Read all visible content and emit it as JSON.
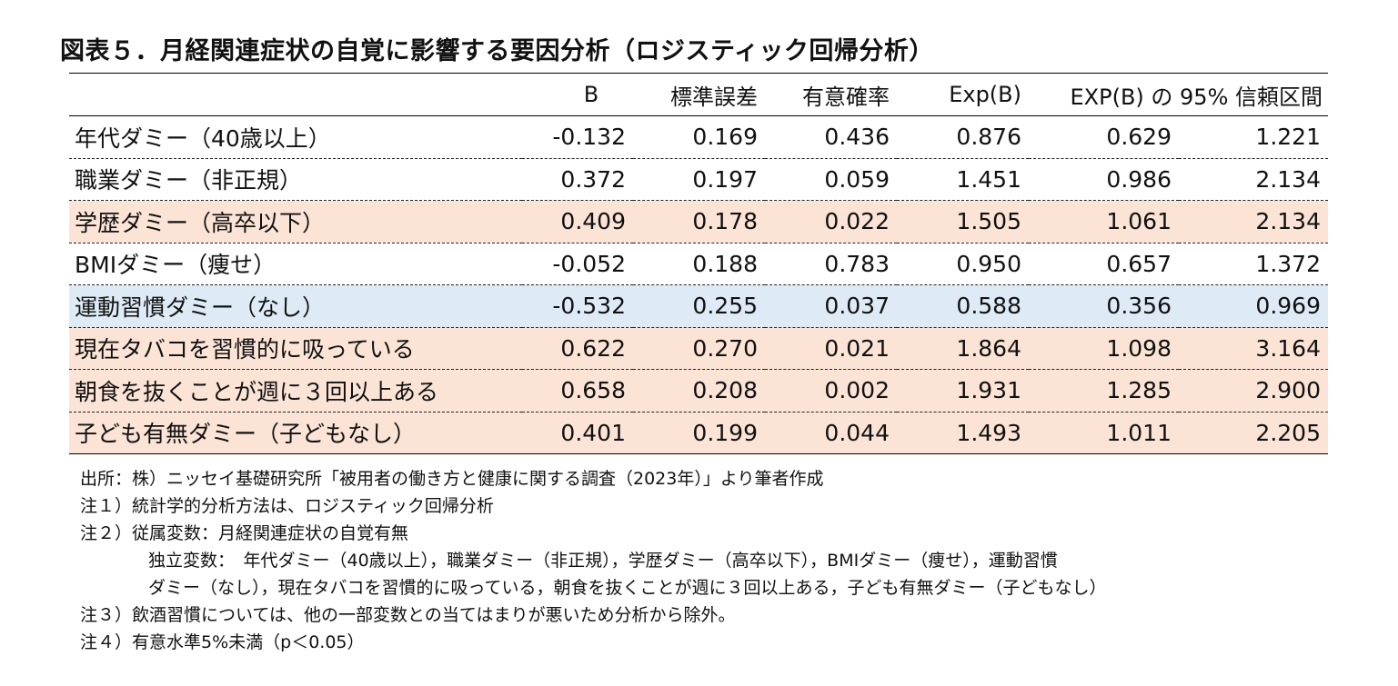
{
  "title": "図表５．月経関連症状の自覚に影響する要因分析（ロジスティック回帰分析）",
  "table": {
    "headers": [
      "",
      "B",
      "標準誤差",
      "有意確率",
      "Exp(B)",
      "EXP(B) の 95% 信頼区間"
    ],
    "rows": [
      {
        "label": "年代ダミー（40歳以上）",
        "b": "-0.132",
        "se": "0.169",
        "p": "0.436",
        "exp": "0.876",
        "ci_low": "0.629",
        "ci_high": "1.221",
        "highlight": "none"
      },
      {
        "label": "職業ダミー（非正規）",
        "b": "0.372",
        "se": "0.197",
        "p": "0.059",
        "exp": "1.451",
        "ci_low": "0.986",
        "ci_high": "2.134",
        "highlight": "none"
      },
      {
        "label": "学歴ダミー（高卒以下）",
        "b": "0.409",
        "se": "0.178",
        "p": "0.022",
        "exp": "1.505",
        "ci_low": "1.061",
        "ci_high": "2.134",
        "highlight": "orange"
      },
      {
        "label": "BMIダミー（痩せ）",
        "b": "-0.052",
        "se": "0.188",
        "p": "0.783",
        "exp": "0.950",
        "ci_low": "0.657",
        "ci_high": "1.372",
        "highlight": "none"
      },
      {
        "label": "運動習慣ダミー（なし）",
        "b": "-0.532",
        "se": "0.255",
        "p": "0.037",
        "exp": "0.588",
        "ci_low": "0.356",
        "ci_high": "0.969",
        "highlight": "blue"
      },
      {
        "label": "現在タバコを習慣的に吸っている",
        "b": "0.622",
        "se": "0.270",
        "p": "0.021",
        "exp": "1.864",
        "ci_low": "1.098",
        "ci_high": "3.164",
        "highlight": "orange"
      },
      {
        "label": "朝食を抜くことが週に３回以上ある",
        "b": "0.658",
        "se": "0.208",
        "p": "0.002",
        "exp": "1.931",
        "ci_low": "1.285",
        "ci_high": "2.900",
        "highlight": "orange"
      },
      {
        "label": "子ども有無ダミー（子どもなし）",
        "b": "0.401",
        "se": "0.199",
        "p": "0.044",
        "exp": "1.493",
        "ci_low": "1.011",
        "ci_high": "2.205",
        "highlight": "orange"
      }
    ]
  },
  "notes": {
    "source": "出所：株）ニッセイ基礎研究所「被用者の働き方と健康に関する調査（2023年）」より筆者作成",
    "note1": "注１）統計学的分析方法は、ロジスティック回帰分析",
    "note2": "注２）従属変数：月経関連症状の自覚有無",
    "note2_line2": "独立変数：　年代ダミー（40歳以上），職業ダミー（非正規），学歴ダミー（高卒以下），BMIダミー（痩せ），運動習慣",
    "note2_line3": "ダミー（なし），現在タバコを習慣的に吸っている，朝食を抜くことが週に３回以上ある，子ども有無ダミー（子どもなし）",
    "note3": "注３）飲酒習慣については、他の一部変数との当てはまりが悪いため分析から除外。",
    "note4": "注４）有意水準5%未満（p＜0.05）"
  },
  "colors": {
    "highlight_orange": "#fbe4d6",
    "highlight_blue": "#deebf7"
  }
}
